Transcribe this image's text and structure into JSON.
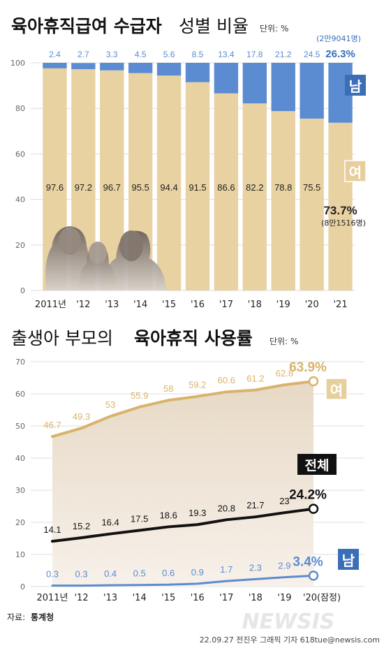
{
  "chart_data": [
    {
      "type": "bar",
      "title_bold": "육아휴직급여 수급자",
      "title_normal": "성별 비율",
      "unit": "단위: %",
      "categories": [
        "2011년",
        "'12",
        "'13",
        "'14",
        "'15",
        "'16",
        "'17",
        "'18",
        "'19",
        "'20",
        "'21"
      ],
      "stacked": true,
      "ylim": [
        0,
        100
      ],
      "yticks": [
        0,
        20,
        40,
        60,
        80,
        100
      ],
      "series": [
        {
          "name": "여",
          "color": "#e8d2a2",
          "values": [
            97.6,
            97.2,
            96.7,
            95.5,
            94.4,
            91.5,
            86.6,
            82.2,
            78.8,
            75.5,
            73.7
          ]
        },
        {
          "name": "남",
          "color": "#5b8bd0",
          "values": [
            2.4,
            2.7,
            3.3,
            4.5,
            5.6,
            8.5,
            13.4,
            17.8,
            21.2,
            24.5,
            26.3
          ]
        }
      ],
      "value_labels_female": [
        "97.6",
        "97.2",
        "96.7",
        "95.5",
        "94.4",
        "91.5",
        "86.6",
        "82.2",
        "78.8",
        "75.5",
        "73.7%"
      ],
      "value_labels_male": [
        "2.4",
        "2.7",
        "3.3",
        "4.5",
        "5.6",
        "8.5",
        "13.4",
        "17.8",
        "21.2",
        "24.5",
        "26.3%"
      ],
      "annotation_male": "(2만9041명)",
      "annotation_female": "(8만1516명)",
      "legend_male": "남",
      "legend_female": "여"
    },
    {
      "type": "line",
      "title_normal": "출생아 부모의",
      "title_bold": "육아휴직 사용률",
      "unit": "단위: %",
      "categories": [
        "2011년",
        "'12",
        "'13",
        "'14",
        "'15",
        "'16",
        "'17",
        "'18",
        "'19",
        "'20(잠정)"
      ],
      "ylim": [
        0,
        70
      ],
      "yticks": [
        0,
        10,
        20,
        30,
        40,
        50,
        60,
        70
      ],
      "series": [
        {
          "name": "여",
          "color": "#d9b36c",
          "values": [
            46.7,
            49.3,
            53,
            55.9,
            58,
            59.2,
            60.6,
            61.2,
            62.8,
            63.9
          ]
        },
        {
          "name": "전체",
          "color": "#111111",
          "values": [
            14.1,
            15.2,
            16.4,
            17.5,
            18.6,
            19.3,
            20.8,
            21.7,
            23,
            24.2
          ]
        },
        {
          "name": "남",
          "color": "#5b8bd0",
          "values": [
            0.3,
            0.3,
            0.4,
            0.5,
            0.6,
            0.9,
            1.7,
            2.3,
            2.9,
            3.4
          ]
        }
      ],
      "last_labels": {
        "female": "63.9%",
        "total": "24.2%",
        "male": "3.4%"
      }
    }
  ],
  "footer": {
    "source_label": "자료:",
    "source_value": "통계청",
    "credit": "22.09.27 전진우 그래픽 기자 618tue@newsis.com",
    "watermark": "NEWSIS"
  },
  "colors": {
    "female": "#e8d2a2",
    "female_line": "#d9b36c",
    "male": "#5b8bd0",
    "male_dark": "#3a6fb8",
    "total": "#111111"
  }
}
